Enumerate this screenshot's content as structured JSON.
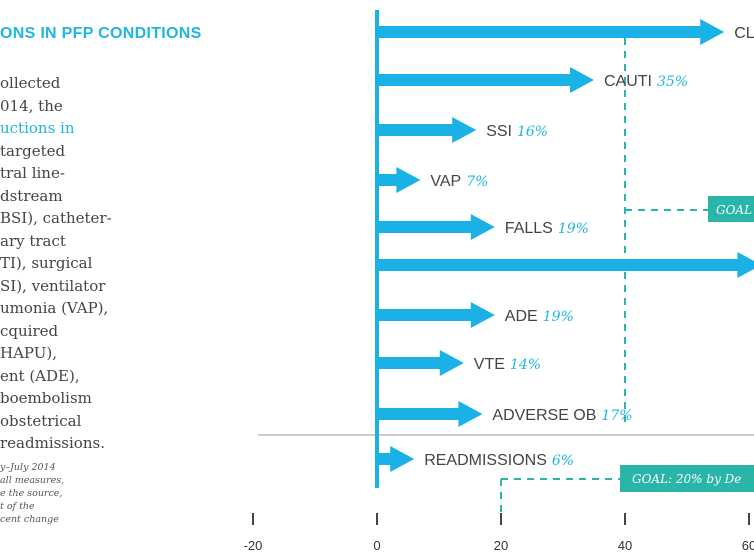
{
  "sidebar": {
    "heading": "ONS IN PFP CONDITIONS",
    "body_lines": [
      {
        "text": "ollected",
        "highlight": false
      },
      {
        "text": "014, the",
        "highlight": false
      },
      {
        "text": "uctions in",
        "highlight": true
      },
      {
        "text": "targeted",
        "highlight": false
      },
      {
        "text": "tral line-",
        "highlight": false
      },
      {
        "text": "dstream",
        "highlight": false
      },
      {
        "text": "BSI), catheter-",
        "highlight": false
      },
      {
        "text": "ary tract",
        "highlight": false
      },
      {
        "text": "TI), surgical",
        "highlight": false
      },
      {
        "text": "SI), ventilator",
        "highlight": false
      },
      {
        "text": "umonia (VAP),",
        "highlight": false
      },
      {
        "text": "cquired",
        "highlight": false
      },
      {
        "text": "HAPU),",
        "highlight": false
      },
      {
        "text": "ent (ADE),",
        "highlight": false
      },
      {
        "text": "boembolism",
        "highlight": false
      },
      {
        "text": "obstetrical",
        "highlight": false
      },
      {
        "text": "readmissions.",
        "highlight": false
      }
    ],
    "note_lines": [
      "y–July 2014",
      "all measures,",
      "e the source,",
      "t of the",
      "cent change"
    ]
  },
  "colors": {
    "arrow": "#1ab1e6",
    "axis": "#1ab1e6",
    "goal": "#2ab5a9",
    "divider": "#bbbbbb",
    "accent_text": "#1fb6e0"
  },
  "chart_data": {
    "type": "bar",
    "orientation": "horizontal",
    "x_ticks": [
      -20,
      0,
      20,
      40,
      60
    ],
    "x_tick_labels": [
      "-20",
      "0",
      "20",
      "40",
      "60"
    ],
    "bars": [
      {
        "label": "CL",
        "value": 56,
        "value_label": ""
      },
      {
        "label": "CAUTI",
        "value": 35,
        "value_label": "35%"
      },
      {
        "label": "SSI",
        "value": 16,
        "value_label": "16%"
      },
      {
        "label": "VAP",
        "value": 7,
        "value_label": "7%"
      },
      {
        "label": "FALLS",
        "value": 19,
        "value_label": "19%"
      },
      {
        "label": "",
        "value": 62,
        "value_label": ""
      },
      {
        "label": "ADE",
        "value": 19,
        "value_label": "19%"
      },
      {
        "label": "VTE",
        "value": 14,
        "value_label": "14%"
      },
      {
        "label": "ADVERSE OB",
        "value": 17,
        "value_label": "17%"
      },
      {
        "label": "READMISSIONS",
        "value": 6,
        "value_label": "6%"
      }
    ],
    "goals": [
      {
        "value": 40,
        "label": "GOAL",
        "applies_to": "conditions"
      },
      {
        "value": 20,
        "label": "GOAL: 20% by De",
        "applies_to": "readmissions"
      }
    ]
  }
}
